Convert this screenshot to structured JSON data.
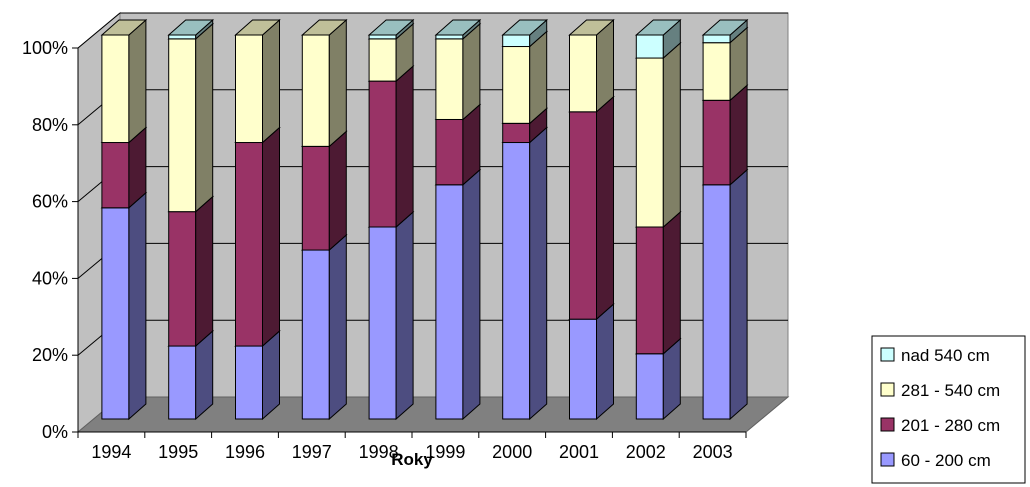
{
  "chart_data": {
    "type": "bar",
    "stacked": true,
    "percent": true,
    "three_d": true,
    "title": "",
    "xlabel": "Roky",
    "ylabel": "",
    "ylim": [
      0,
      100
    ],
    "y_ticks": [
      "0%",
      "20%",
      "40%",
      "60%",
      "80%",
      "100%"
    ],
    "categories": [
      "1994",
      "1995",
      "1996",
      "1997",
      "1998",
      "1999",
      "2000",
      "2001",
      "2002",
      "2003"
    ],
    "series": [
      {
        "name": "60 - 200 cm",
        "color": "#9999ff",
        "values": [
          55,
          19,
          19,
          44,
          50,
          61,
          72,
          26,
          17,
          61
        ]
      },
      {
        "name": "201 - 280 cm",
        "color": "#993366",
        "values": [
          17,
          35,
          53,
          27,
          38,
          17,
          5,
          54,
          33,
          22
        ]
      },
      {
        "name": "281 - 540 cm",
        "color": "#ffffcc",
        "values": [
          28,
          45,
          28,
          29,
          11,
          21,
          20,
          20,
          44,
          15
        ]
      },
      {
        "name": "nad 540 cm",
        "color": "#ccffff",
        "values": [
          0,
          1,
          0,
          0,
          1,
          1,
          3,
          0,
          6,
          2
        ]
      }
    ],
    "legend_position": "right",
    "grid": true
  }
}
